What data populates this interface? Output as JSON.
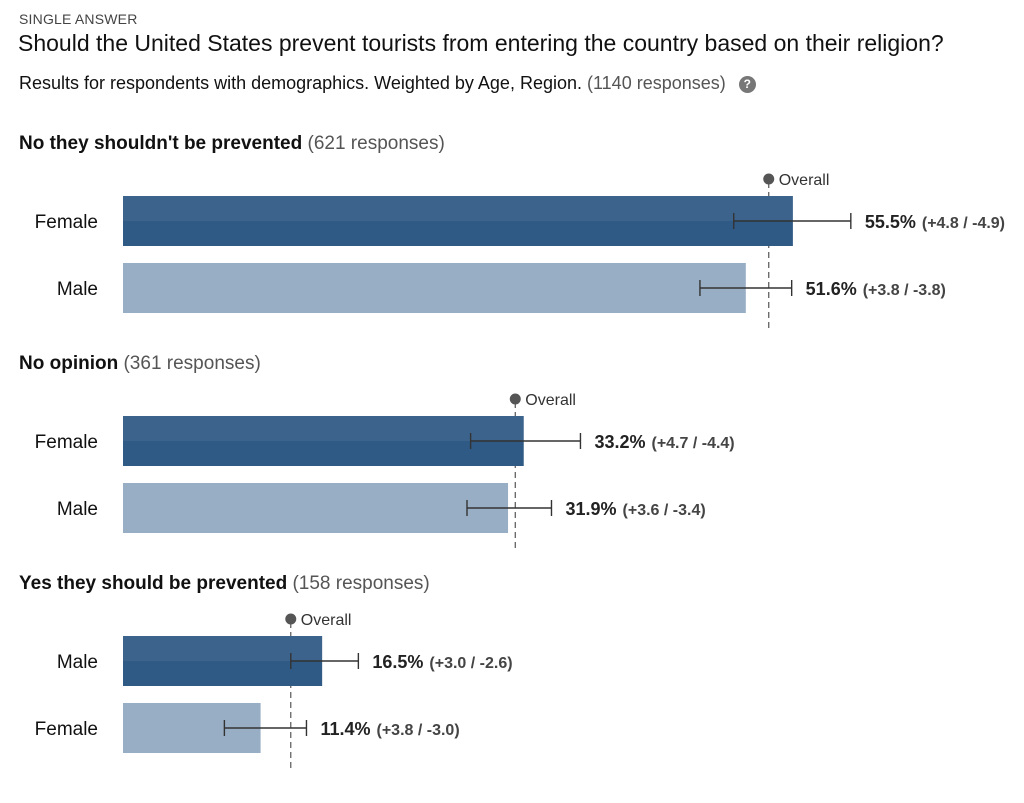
{
  "header": {
    "question_type": "SINGLE ANSWER",
    "title": "Should the United States prevent tourists from entering the country based on their religion?",
    "subtitle": "Results for respondents with demographics. Weighted by Age, Region.",
    "response_count": "(1140 responses)",
    "help_icon": "question-circle-icon"
  },
  "colors": {
    "bar_dark": "#2f5a85",
    "bar_light": "#98aec4",
    "overall_marker": "#555555"
  },
  "chart_data": {
    "type": "bar",
    "orientation": "horizontal",
    "xlim": [
      0,
      100
    ],
    "overall_label": "Overall",
    "groups": [
      {
        "title": "No they shouldn't be prevented",
        "count": "(621 responses)",
        "overall": 53.5,
        "rows": [
          {
            "label": "Female",
            "value": 55.5,
            "ci_plus": 4.8,
            "ci_minus": 4.9,
            "value_text": "55.5%",
            "ci_text": "(+4.8 / -4.9)",
            "shade": "dark"
          },
          {
            "label": "Male",
            "value": 51.6,
            "ci_plus": 3.8,
            "ci_minus": 3.8,
            "value_text": "51.6%",
            "ci_text": "(+3.8 / -3.8)",
            "shade": "light"
          }
        ]
      },
      {
        "title": "No opinion",
        "count": "(361 responses)",
        "overall": 32.5,
        "rows": [
          {
            "label": "Female",
            "value": 33.2,
            "ci_plus": 4.7,
            "ci_minus": 4.4,
            "value_text": "33.2%",
            "ci_text": "(+4.7 / -4.4)",
            "shade": "dark"
          },
          {
            "label": "Male",
            "value": 31.9,
            "ci_plus": 3.6,
            "ci_minus": 3.4,
            "value_text": "31.9%",
            "ci_text": "(+3.6 / -3.4)",
            "shade": "light"
          }
        ]
      },
      {
        "title": "Yes they should be prevented",
        "count": "(158 responses)",
        "overall": 13.9,
        "rows": [
          {
            "label": "Male",
            "value": 16.5,
            "ci_plus": 3.0,
            "ci_minus": 2.6,
            "value_text": "16.5%",
            "ci_text": "(+3.0 / -2.6)",
            "shade": "dark"
          },
          {
            "label": "Female",
            "value": 11.4,
            "ci_plus": 3.8,
            "ci_minus": 3.0,
            "value_text": "11.4%",
            "ci_text": "(+3.8 / -3.0)",
            "shade": "light"
          }
        ]
      }
    ]
  }
}
